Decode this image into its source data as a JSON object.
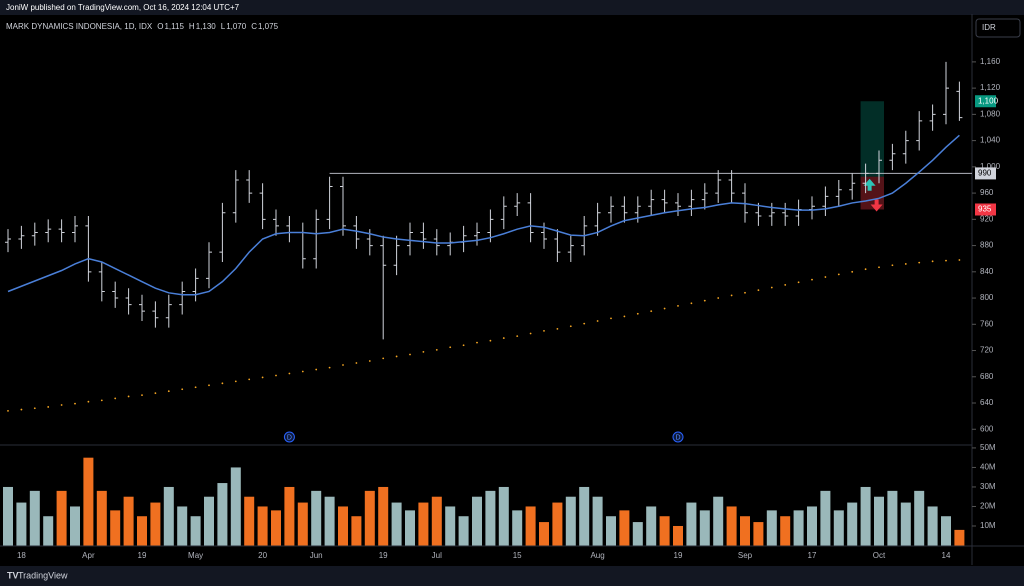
{
  "header": {
    "publisher": "JoniW published on TradingView.com, Oct 16, 2024 12:04 UTC+7",
    "currency": "IDR",
    "brand": "TradingView"
  },
  "chart_data": {
    "type": "ohlc",
    "legend": {
      "symbol": "MARK DYNAMICS INDONESIA, 1D, IDX",
      "fields": [
        {
          "key": "O",
          "label": "1,115"
        },
        {
          "key": "H",
          "label": "1,130"
        },
        {
          "key": "L",
          "label": "1,070"
        },
        {
          "key": "C",
          "label": "1,075"
        }
      ]
    },
    "categories": [
      null,
      "18",
      null,
      null,
      null,
      null,
      "Apr",
      null,
      null,
      null,
      "19",
      null,
      null,
      null,
      "May",
      null,
      null,
      null,
      null,
      "20",
      null,
      null,
      null,
      "Jun",
      null,
      null,
      null,
      null,
      "19",
      null,
      null,
      null,
      "Jul",
      null,
      null,
      null,
      null,
      null,
      "15",
      null,
      null,
      null,
      null,
      null,
      "Aug",
      null,
      null,
      null,
      null,
      null,
      "19",
      null,
      null,
      null,
      null,
      "Sep",
      null,
      null,
      null,
      null,
      "17",
      null,
      null,
      null,
      null,
      "Oct",
      null,
      null,
      null,
      null,
      "14",
      null
    ],
    "open": [
      885,
      890,
      895,
      900,
      905,
      900,
      910,
      840,
      810,
      800,
      790,
      780,
      770,
      790,
      810,
      830,
      870,
      930,
      980,
      960,
      920,
      910,
      900,
      860,
      920,
      970,
      910,
      890,
      880,
      850,
      880,
      900,
      890,
      880,
      885,
      895,
      900,
      920,
      940,
      945,
      900,
      890,
      870,
      880,
      910,
      930,
      940,
      930,
      940,
      950,
      945,
      940,
      950,
      960,
      980,
      960,
      930,
      925,
      930,
      925,
      935,
      940,
      955,
      965,
      975,
      990,
      1010,
      1020,
      1040,
      1070,
      1080,
      1115
    ],
    "high": [
      905,
      910,
      915,
      920,
      920,
      925,
      925,
      855,
      825,
      815,
      805,
      795,
      805,
      825,
      845,
      885,
      945,
      995,
      995,
      975,
      935,
      925,
      915,
      935,
      985,
      985,
      925,
      905,
      895,
      895,
      915,
      915,
      905,
      900,
      910,
      915,
      935,
      955,
      960,
      960,
      915,
      905,
      895,
      925,
      945,
      955,
      955,
      955,
      965,
      965,
      960,
      965,
      975,
      995,
      995,
      975,
      945,
      945,
      945,
      950,
      955,
      970,
      980,
      990,
      1005,
      1025,
      1035,
      1055,
      1085,
      1095,
      1160,
      1130
    ],
    "low": [
      870,
      875,
      880,
      885,
      885,
      885,
      825,
      795,
      785,
      775,
      765,
      755,
      755,
      775,
      795,
      815,
      855,
      915,
      945,
      905,
      895,
      885,
      845,
      845,
      905,
      895,
      875,
      865,
      737,
      835,
      865,
      875,
      865,
      865,
      870,
      880,
      885,
      905,
      925,
      885,
      875,
      855,
      855,
      865,
      895,
      915,
      915,
      915,
      925,
      930,
      925,
      925,
      935,
      945,
      945,
      915,
      910,
      910,
      910,
      910,
      920,
      925,
      940,
      950,
      960,
      975,
      995,
      1005,
      1025,
      1055,
      1065,
      1070
    ],
    "close": [
      890,
      895,
      900,
      905,
      900,
      910,
      840,
      810,
      800,
      790,
      780,
      770,
      790,
      810,
      830,
      870,
      930,
      980,
      960,
      920,
      910,
      900,
      860,
      920,
      970,
      910,
      890,
      880,
      850,
      880,
      900,
      890,
      880,
      885,
      895,
      900,
      920,
      940,
      945,
      900,
      890,
      870,
      880,
      910,
      930,
      940,
      930,
      940,
      950,
      945,
      940,
      950,
      960,
      980,
      960,
      930,
      925,
      930,
      925,
      935,
      940,
      955,
      965,
      975,
      990,
      1010,
      1020,
      1040,
      1070,
      1080,
      1120,
      1075
    ],
    "bar_color": "#d1d4dc",
    "ma": {
      "color": "#4a7fd8",
      "values": [
        810,
        818,
        826,
        834,
        842,
        852,
        860,
        855,
        845,
        835,
        825,
        815,
        808,
        805,
        805,
        810,
        825,
        845,
        870,
        890,
        898,
        900,
        900,
        898,
        900,
        905,
        902,
        898,
        893,
        890,
        888,
        886,
        884,
        884,
        886,
        888,
        892,
        898,
        905,
        910,
        908,
        902,
        896,
        895,
        900,
        910,
        918,
        922,
        926,
        930,
        933,
        936,
        938,
        942,
        945,
        944,
        941,
        938,
        936,
        934,
        934,
        936,
        940,
        945,
        948,
        952,
        960,
        975,
        992,
        1010,
        1030,
        1048
      ]
    },
    "ma_long": {
      "color": "#f5a623",
      "values": [
        628,
        630,
        632,
        634,
        637,
        639,
        642,
        644,
        647,
        650,
        652,
        655,
        658,
        661,
        664,
        667,
        670,
        673,
        676,
        679,
        682,
        685,
        688,
        691,
        694,
        698,
        701,
        704,
        708,
        711,
        714,
        718,
        721,
        725,
        728,
        732,
        735,
        739,
        742,
        746,
        750,
        753,
        757,
        761,
        765,
        769,
        772,
        776,
        780,
        784,
        788,
        792,
        796,
        800,
        804,
        808,
        812,
        816,
        820,
        824,
        828,
        832,
        836,
        840,
        844,
        847,
        850,
        852,
        854,
        856,
        857,
        858
      ]
    },
    "level": {
      "value": 990,
      "label": "990",
      "start": 24,
      "color": "#b2b5be"
    },
    "position": {
      "start": 64,
      "end": 65,
      "entry": 985,
      "target": {
        "value": 1100,
        "label": "1,100",
        "color": "#089981"
      },
      "stop": {
        "value": 935,
        "label": "935",
        "color": "#f23645"
      }
    },
    "dividends": [
      {
        "index": 21,
        "label": "D"
      },
      {
        "index": 50,
        "label": "D"
      }
    ],
    "ylim": [
      576,
      1233
    ],
    "yticks": [
      600,
      640,
      680,
      720,
      760,
      800,
      840,
      880,
      920,
      960,
      {
        "value": 1000,
        "label": "1,000"
      },
      {
        "value": 1040,
        "label": "1,040"
      },
      {
        "value": 1080,
        "label": "1,080"
      },
      {
        "value": 1120,
        "label": "1,120"
      },
      {
        "value": 1160,
        "label": "1,160"
      }
    ],
    "volume": {
      "up_color": "#9ab8ba",
      "down_color": "#f07020",
      "values": [
        30,
        22,
        28,
        15,
        28,
        20,
        45,
        28,
        18,
        25,
        15,
        22,
        30,
        20,
        15,
        25,
        32,
        40,
        25,
        20,
        18,
        30,
        22,
        28,
        25,
        20,
        15,
        28,
        30,
        22,
        18,
        22,
        25,
        20,
        15,
        25,
        28,
        30,
        18,
        20,
        12,
        22,
        25,
        30,
        25,
        15,
        18,
        12,
        20,
        15,
        10,
        22,
        18,
        25,
        20,
        15,
        12,
        18,
        15,
        18,
        20,
        28,
        18,
        22,
        30,
        25,
        28,
        22,
        28,
        20,
        15,
        8
      ]
    },
    "y2lim": [
      0,
      51.5
    ],
    "y2ticks": [
      {
        "value": 10,
        "label": "10M"
      },
      {
        "value": 20,
        "label": "20M"
      },
      {
        "value": 30,
        "label": "30M"
      },
      {
        "value": 40,
        "label": "40M"
      },
      {
        "value": 50,
        "label": "50M"
      }
    ]
  }
}
